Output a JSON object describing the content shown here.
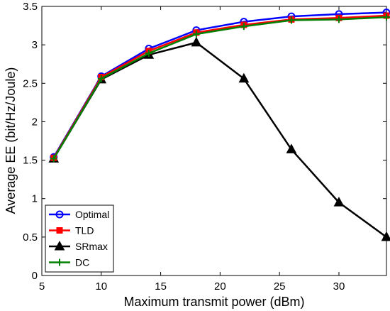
{
  "chart_data": {
    "type": "line",
    "title": "",
    "xlabel": "Maximum transmit power (dBm)",
    "ylabel": "Average EE (bit/Hz/Joule)",
    "xlim": [
      5,
      34
    ],
    "ylim": [
      0,
      3.5
    ],
    "xticks": [
      5,
      10,
      15,
      20,
      25,
      30
    ],
    "yticks": [
      0,
      0.5,
      1,
      1.5,
      2,
      2.5,
      3,
      3.5
    ],
    "grid": false,
    "legend_position": "bottom-left",
    "x": [
      6,
      10,
      14,
      18,
      22,
      26,
      30,
      34
    ],
    "series": [
      {
        "name": "Optimal",
        "color": "#0000ff",
        "marker": "circle",
        "values": [
          1.54,
          2.59,
          2.95,
          3.19,
          3.3,
          3.37,
          3.4,
          3.42
        ]
      },
      {
        "name": "TLD",
        "color": "#ff0000",
        "marker": "square",
        "values": [
          1.53,
          2.58,
          2.92,
          3.16,
          3.26,
          3.33,
          3.35,
          3.38
        ]
      },
      {
        "name": "SRmax",
        "color": "#000000",
        "marker": "triangle",
        "values": [
          1.52,
          2.55,
          2.87,
          3.03,
          2.56,
          1.64,
          0.95,
          0.5
        ]
      },
      {
        "name": "DC",
        "color": "#008000",
        "marker": "plus",
        "values": [
          1.52,
          2.56,
          2.89,
          3.14,
          3.24,
          3.32,
          3.33,
          3.36
        ]
      }
    ]
  }
}
